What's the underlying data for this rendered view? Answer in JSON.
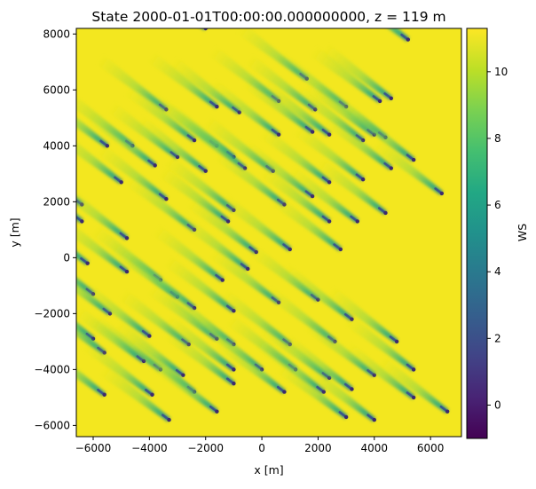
{
  "chart_data": {
    "type": "heatmap",
    "title": "State 2000-01-01T00:00:00.000000000, z =  119 m",
    "xlabel": "x [m]",
    "ylabel": "y [m]",
    "xlim": [
      -6600,
      7100
    ],
    "ylim": [
      -6400,
      8200
    ],
    "x_ticks": [
      -6000,
      -4000,
      -2000,
      0,
      2000,
      4000,
      6000
    ],
    "x_tick_labels": [
      "−6000",
      "−4000",
      "−2000",
      "0",
      "2000",
      "4000",
      "6000"
    ],
    "y_ticks": [
      -6000,
      -4000,
      -2000,
      0,
      2000,
      4000,
      6000,
      8000
    ],
    "y_tick_labels": [
      "−6000",
      "−4000",
      "−2000",
      "0",
      "2000",
      "4000",
      "6000",
      "8000"
    ],
    "colorbar": {
      "label": "WS",
      "colormap": "viridis",
      "range": [
        -1,
        11.3
      ],
      "ticks": [
        0,
        2,
        4,
        6,
        8,
        10
      ],
      "tick_labels": [
        "0",
        "2",
        "4",
        "6",
        "8",
        "10"
      ]
    },
    "free_stream_ws": 11.3,
    "wake_direction": "toward lower-right",
    "turbine_positions": [
      [
        -2000,
        8200
      ],
      [
        5200,
        7800
      ],
      [
        1600,
        6400
      ],
      [
        -3400,
        5300
      ],
      [
        -1600,
        5400
      ],
      [
        -800,
        5200
      ],
      [
        600,
        5600
      ],
      [
        1900,
        5300
      ],
      [
        3000,
        5400
      ],
      [
        4200,
        5600
      ],
      [
        4600,
        5700
      ],
      [
        -5500,
        4000
      ],
      [
        -4600,
        4000
      ],
      [
        -2400,
        4200
      ],
      [
        -1600,
        4000
      ],
      [
        600,
        4400
      ],
      [
        1800,
        4500
      ],
      [
        2400,
        4400
      ],
      [
        3600,
        4200
      ],
      [
        4000,
        4400
      ],
      [
        4400,
        4300
      ],
      [
        -3000,
        3600
      ],
      [
        -1000,
        3600
      ],
      [
        4600,
        3200
      ],
      [
        5400,
        3500
      ],
      [
        -3800,
        3300
      ],
      [
        -2000,
        3100
      ],
      [
        -600,
        3200
      ],
      [
        400,
        3100
      ],
      [
        -5000,
        2700
      ],
      [
        2400,
        2700
      ],
      [
        3600,
        2800
      ],
      [
        6400,
        2300
      ],
      [
        -6400,
        1900
      ],
      [
        -3400,
        2100
      ],
      [
        -1000,
        1700
      ],
      [
        800,
        1900
      ],
      [
        1800,
        2200
      ],
      [
        4400,
        1600
      ],
      [
        -6400,
        1300
      ],
      [
        -4800,
        700
      ],
      [
        -2400,
        1000
      ],
      [
        -1200,
        1300
      ],
      [
        2400,
        1300
      ],
      [
        3400,
        1300
      ],
      [
        -200,
        200
      ],
      [
        1000,
        300
      ],
      [
        2800,
        300
      ],
      [
        -6200,
        -200
      ],
      [
        -4800,
        -500
      ],
      [
        -3600,
        -800
      ],
      [
        -1400,
        -800
      ],
      [
        -500,
        -400
      ],
      [
        -6000,
        -1300
      ],
      [
        -3000,
        -1400
      ],
      [
        -2400,
        -1800
      ],
      [
        -1000,
        -1900
      ],
      [
        600,
        -1600
      ],
      [
        2000,
        -1500
      ],
      [
        3200,
        -2200
      ],
      [
        -5400,
        -2000
      ],
      [
        -1600,
        -2900
      ],
      [
        -4000,
        -2800
      ],
      [
        -6000,
        -2900
      ],
      [
        -3600,
        -4000
      ],
      [
        -2600,
        -3100
      ],
      [
        -1000,
        -3100
      ],
      [
        1000,
        -3100
      ],
      [
        2600,
        -3000
      ],
      [
        4800,
        -3000
      ],
      [
        -5600,
        -3400
      ],
      [
        -4200,
        -3700
      ],
      [
        -2800,
        -4200
      ],
      [
        -1000,
        -4000
      ],
      [
        0,
        -4000
      ],
      [
        1200,
        -4000
      ],
      [
        2400,
        -4300
      ],
      [
        4000,
        -4200
      ],
      [
        5400,
        -4000
      ],
      [
        -5600,
        -4900
      ],
      [
        -3900,
        -4900
      ],
      [
        -2400,
        -4800
      ],
      [
        -1000,
        -4500
      ],
      [
        800,
        -4800
      ],
      [
        2200,
        -4800
      ],
      [
        3200,
        -4700
      ],
      [
        -3300,
        -5800
      ],
      [
        -1600,
        -5500
      ],
      [
        3000,
        -5700
      ],
      [
        4000,
        -5800
      ],
      [
        5400,
        -5000
      ],
      [
        6600,
        -5500
      ]
    ]
  }
}
